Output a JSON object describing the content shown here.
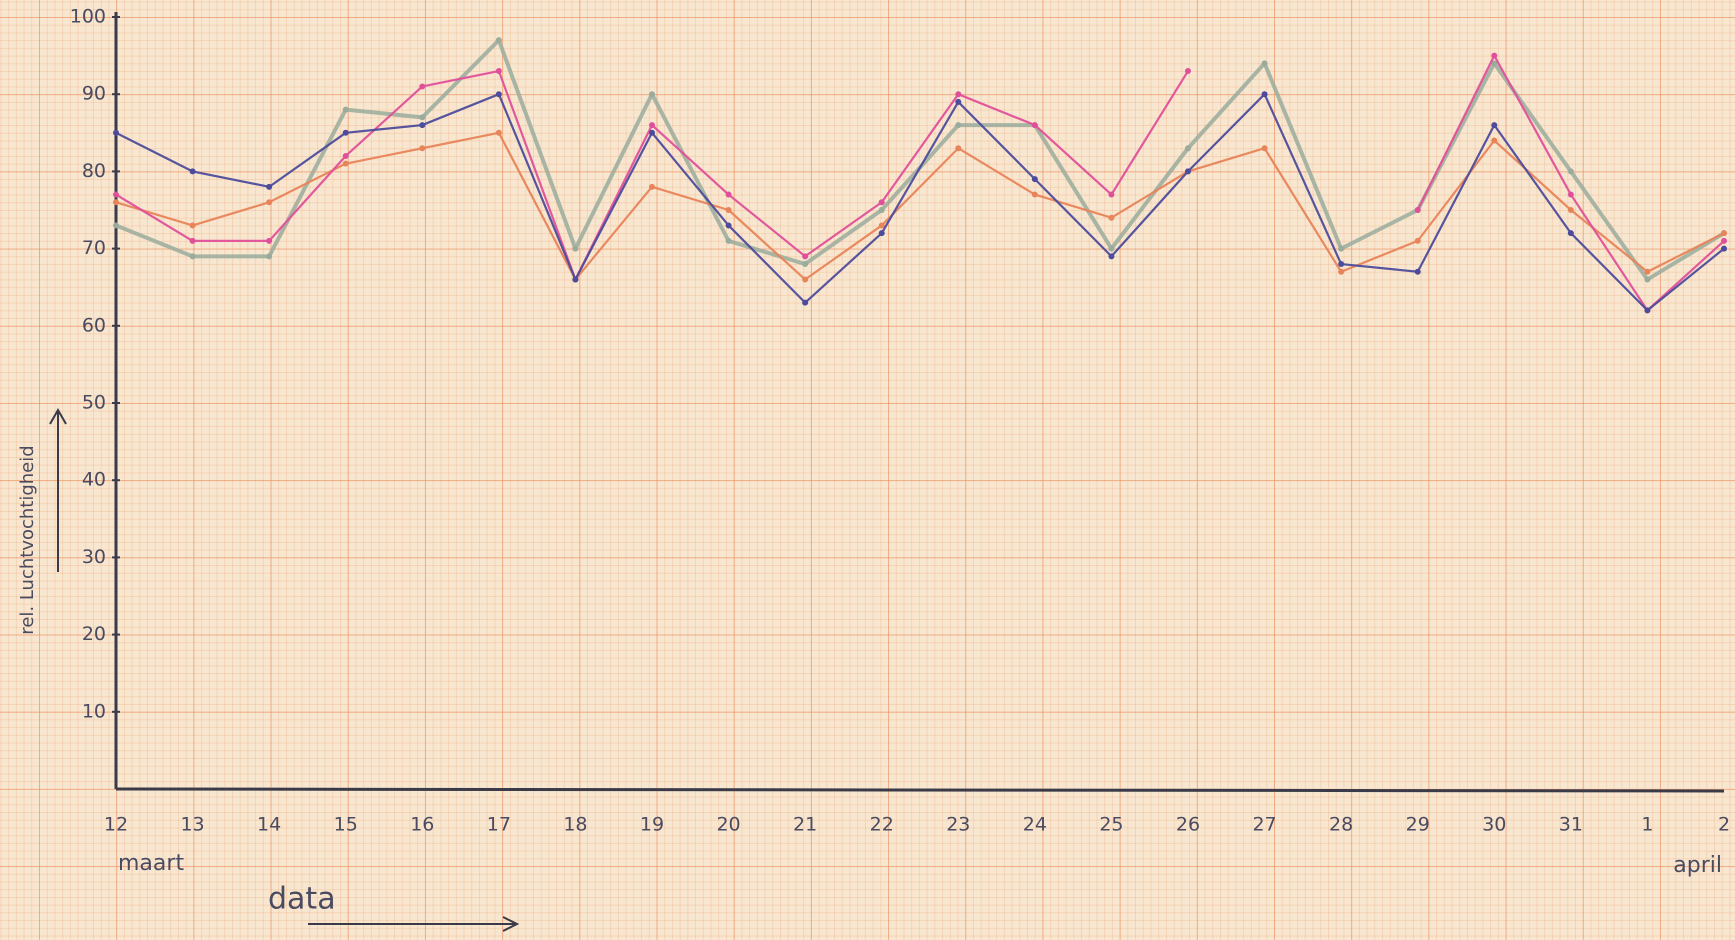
{
  "chart_data": {
    "type": "line",
    "ylabel": "rel. Luchtvochtigheid",
    "xlabel": "data",
    "annotations": [
      "maart",
      "april"
    ],
    "categories": [
      "12",
      "13",
      "14",
      "15",
      "16",
      "17",
      "18",
      "19",
      "20",
      "21",
      "22",
      "23",
      "24",
      "25",
      "26",
      "27",
      "28",
      "29",
      "30",
      "31",
      "1",
      "2"
    ],
    "ylim": [
      0,
      100
    ],
    "yticks": [
      10,
      20,
      30,
      40,
      50,
      60,
      70,
      80,
      90,
      100
    ],
    "series": [
      {
        "color": "#9aab9c",
        "values": [
          73,
          69,
          69,
          88,
          87,
          97,
          70,
          90,
          71,
          68,
          75,
          86,
          86,
          70,
          83,
          94,
          70,
          75,
          94,
          80,
          66,
          72
        ]
      },
      {
        "color": "#e8845a",
        "values": [
          76,
          73,
          76,
          81,
          83,
          85,
          66,
          78,
          75,
          66,
          73,
          83,
          77,
          74,
          80,
          83,
          67,
          71,
          84,
          75,
          67,
          72
        ]
      },
      {
        "color": "#e0509a",
        "values": [
          77,
          71,
          71,
          82,
          91,
          93,
          66,
          86,
          77,
          69,
          76,
          90,
          86,
          77,
          93,
          null,
          null,
          75,
          95,
          77,
          62,
          71
        ]
      },
      {
        "color": "#4d4c9c",
        "values": [
          85,
          80,
          78,
          85,
          86,
          90,
          66,
          85,
          73,
          63,
          72,
          89,
          79,
          69,
          80,
          90,
          68,
          67,
          86,
          72,
          62,
          70
        ]
      }
    ]
  }
}
